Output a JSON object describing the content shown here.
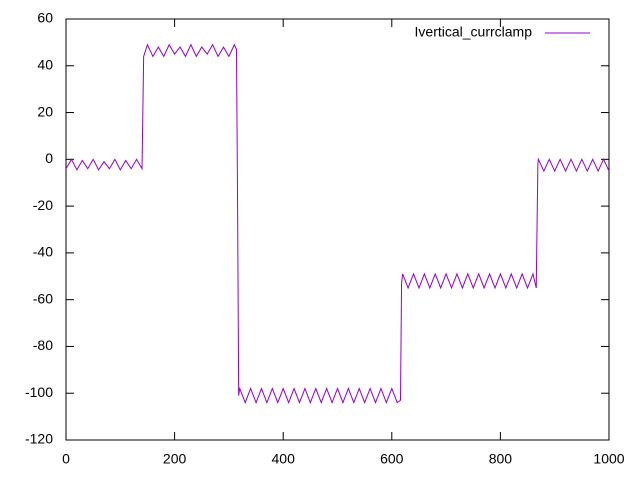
{
  "chart_data": {
    "type": "line",
    "xlim": [
      0,
      1000
    ],
    "ylim": [
      -120,
      60
    ],
    "xticks": [
      0,
      200,
      400,
      600,
      800,
      1000
    ],
    "yticks": [
      -120,
      -100,
      -80,
      -60,
      -40,
      -20,
      0,
      20,
      40,
      60
    ],
    "grid": false,
    "legend": "top-right",
    "x": [
      0,
      10,
      20,
      30,
      40,
      50,
      60,
      70,
      80,
      90,
      100,
      110,
      120,
      130,
      140,
      143,
      150,
      160,
      170,
      180,
      190,
      200,
      210,
      220,
      230,
      240,
      250,
      260,
      270,
      280,
      290,
      300,
      310,
      314,
      316,
      318,
      320,
      330,
      340,
      350,
      360,
      370,
      380,
      390,
      400,
      410,
      420,
      430,
      440,
      450,
      460,
      470,
      480,
      490,
      500,
      510,
      520,
      530,
      540,
      550,
      560,
      570,
      580,
      590,
      600,
      610,
      616,
      618,
      620,
      630,
      640,
      650,
      660,
      670,
      680,
      690,
      700,
      710,
      720,
      730,
      740,
      750,
      760,
      770,
      780,
      790,
      800,
      810,
      820,
      830,
      840,
      850,
      860,
      866,
      869,
      870,
      880,
      890,
      900,
      910,
      920,
      930,
      940,
      950,
      960,
      970,
      980,
      990,
      1000
    ],
    "series": [
      {
        "name": "Ivertical_currclamp",
        "color": "#9400d3",
        "values": [
          -4,
          0,
          -4.5,
          -0.5,
          -4,
          0,
          -4.5,
          -1,
          -4,
          0,
          -4.5,
          -0.5,
          -4,
          0,
          -4,
          44,
          49,
          44,
          48,
          44,
          49,
          45,
          48,
          44,
          49,
          44,
          48,
          45,
          49,
          44,
          48,
          44,
          49,
          47,
          -20,
          -101,
          -98,
          -104,
          -98,
          -104,
          -98,
          -104,
          -98,
          -104,
          -98,
          -104,
          -98,
          -104,
          -98,
          -104,
          -98,
          -104,
          -98,
          -104,
          -98,
          -104,
          -98,
          -104,
          -98,
          -104,
          -98,
          -104,
          -98,
          -104,
          -98,
          -104,
          -103,
          -53,
          -49,
          -55,
          -49,
          -55,
          -49,
          -55,
          -49,
          -55,
          -49,
          -55,
          -49,
          -55,
          -49,
          -55,
          -49,
          -55,
          -49,
          -55,
          -49,
          -55,
          -49,
          -55,
          -49,
          -55,
          -49,
          -55,
          -2,
          0,
          -5,
          0,
          -5,
          0,
          -5,
          0,
          -5,
          0,
          -5,
          0,
          -5,
          0,
          -5
        ]
      }
    ]
  }
}
